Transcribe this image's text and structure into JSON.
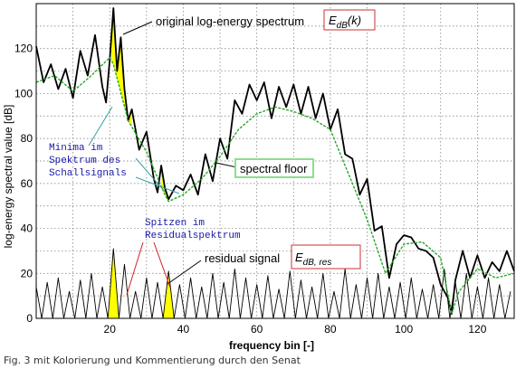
{
  "caption": "Fig. 3 mit Kolorierung und Kommentierung durch den Senat",
  "chart_data": {
    "type": "line",
    "title": "",
    "xlabel": "frequency bin [-]",
    "ylabel": "log-energy spectral value [dB]",
    "xlim": [
      0,
      130
    ],
    "ylim": [
      0,
      140
    ],
    "xticks": [
      20,
      40,
      60,
      80,
      100,
      120
    ],
    "yticks": [
      0,
      20,
      40,
      60,
      80,
      100,
      120
    ],
    "grid": true,
    "colors": {
      "original": "#000000",
      "floor": "#27a827",
      "residual": "#000000",
      "fill": "#ffff00",
      "label_box_red": "#c83232",
      "label_box_green": "#8ae08a",
      "annot_blue": "#1818a8",
      "arrow_teal": "#3aa0a0",
      "arrow_red": "#d02020"
    },
    "series": [
      {
        "name": "original log-energy spectrum",
        "x": [
          0,
          2,
          4,
          6,
          8,
          10,
          12,
          14,
          16,
          18,
          19,
          20,
          21,
          22,
          23,
          24,
          25,
          26,
          28,
          30,
          32,
          33,
          34,
          35,
          36,
          38,
          40,
          42,
          44,
          46,
          48,
          50,
          52,
          54,
          56,
          58,
          60,
          62,
          64,
          66,
          68,
          70,
          72,
          74,
          76,
          78,
          80,
          82,
          84,
          86,
          88,
          90,
          92,
          94,
          96,
          98,
          100,
          102,
          104,
          106,
          108,
          110,
          112,
          113,
          114,
          116,
          118,
          120,
          122,
          124,
          126,
          128,
          130
        ],
        "y": [
          121,
          105,
          113,
          102,
          111,
          98,
          119,
          108,
          126,
          103,
          96,
          115,
          138,
          110,
          125,
          102,
          88,
          93,
          75,
          83,
          62,
          56,
          68,
          58,
          53,
          59,
          57,
          64,
          55,
          73,
          61,
          80,
          71,
          97,
          91,
          104,
          97,
          105,
          89,
          103,
          94,
          104,
          91,
          103,
          89,
          100,
          84,
          93,
          73,
          71,
          55,
          62,
          39,
          41,
          18,
          33,
          37,
          36,
          31,
          30,
          27,
          15,
          9,
          2,
          17,
          30,
          18,
          28,
          18,
          25,
          21,
          30,
          21
        ]
      },
      {
        "name": "spectral floor",
        "x": [
          0,
          5,
          10,
          15,
          20,
          21,
          25,
          30,
          35,
          36,
          40,
          45,
          50,
          55,
          60,
          65,
          70,
          75,
          80,
          85,
          90,
          95,
          100,
          105,
          110,
          113,
          115,
          120,
          125,
          130
        ],
        "y": [
          105,
          108,
          101,
          108,
          116,
          113,
          88,
          74,
          55,
          52,
          55,
          62,
          72,
          84,
          91,
          94,
          92,
          89,
          84,
          64,
          44,
          20,
          33,
          34,
          27,
          2,
          12,
          22,
          18,
          20
        ]
      },
      {
        "name": "residual signal",
        "x": [
          0,
          1.5,
          3,
          4.5,
          6,
          7.5,
          9,
          10.5,
          12,
          13.5,
          15,
          16.5,
          18,
          19.5,
          21,
          22.5,
          24,
          25.5,
          27,
          28.5,
          30,
          31.5,
          33,
          34.5,
          36,
          37.5,
          39,
          40.5,
          42,
          43.5,
          45,
          46.5,
          48,
          49.5,
          51,
          52.5,
          54,
          55.5,
          57,
          58.5,
          60,
          61.5,
          63,
          64.5,
          66,
          67.5,
          69,
          70.5,
          72,
          73.5,
          75,
          76.5,
          78,
          79.5,
          81,
          82.5,
          84,
          85.5,
          87,
          88.5,
          90,
          91.5,
          93,
          94.5,
          96,
          97.5,
          99,
          100.5,
          102,
          103.5,
          105,
          106.5,
          108,
          109.5,
          111,
          112.5,
          114,
          115.5,
          117,
          118.5,
          120,
          121.5,
          123,
          124.5,
          126,
          127.5,
          129
        ],
        "y": [
          14,
          0,
          16,
          0,
          18,
          0,
          12,
          0,
          17,
          0,
          20,
          0,
          14,
          0,
          31,
          0,
          24,
          0,
          12,
          0,
          18,
          0,
          16,
          0,
          21,
          0,
          15,
          0,
          18,
          0,
          14,
          0,
          20,
          0,
          16,
          0,
          22,
          0,
          18,
          0,
          15,
          0,
          19,
          0,
          13,
          0,
          21,
          0,
          17,
          0,
          14,
          0,
          20,
          0,
          12,
          0,
          22,
          0,
          15,
          0,
          18,
          0,
          20,
          0,
          14,
          0,
          16,
          0,
          18,
          0,
          13,
          0,
          15,
          0,
          22,
          0,
          16,
          0,
          20,
          0,
          14,
          0,
          18,
          0,
          15,
          0,
          12
        ]
      }
    ],
    "annotations": {
      "original_label": "original log-energy spectrum",
      "original_symbol": "E",
      "original_symbol_sub": "dB",
      "original_symbol_arg": "(k)",
      "floor_label": "spectral floor",
      "residual_label": "residual signal",
      "residual_symbol": "E",
      "residual_symbol_sub": "dB, res",
      "minima_lines": [
        "Minima im",
        "Spektrum des",
        "Schallsignals"
      ],
      "peaks_lines": [
        "Spitzen im",
        "Residualspektrum"
      ]
    }
  }
}
